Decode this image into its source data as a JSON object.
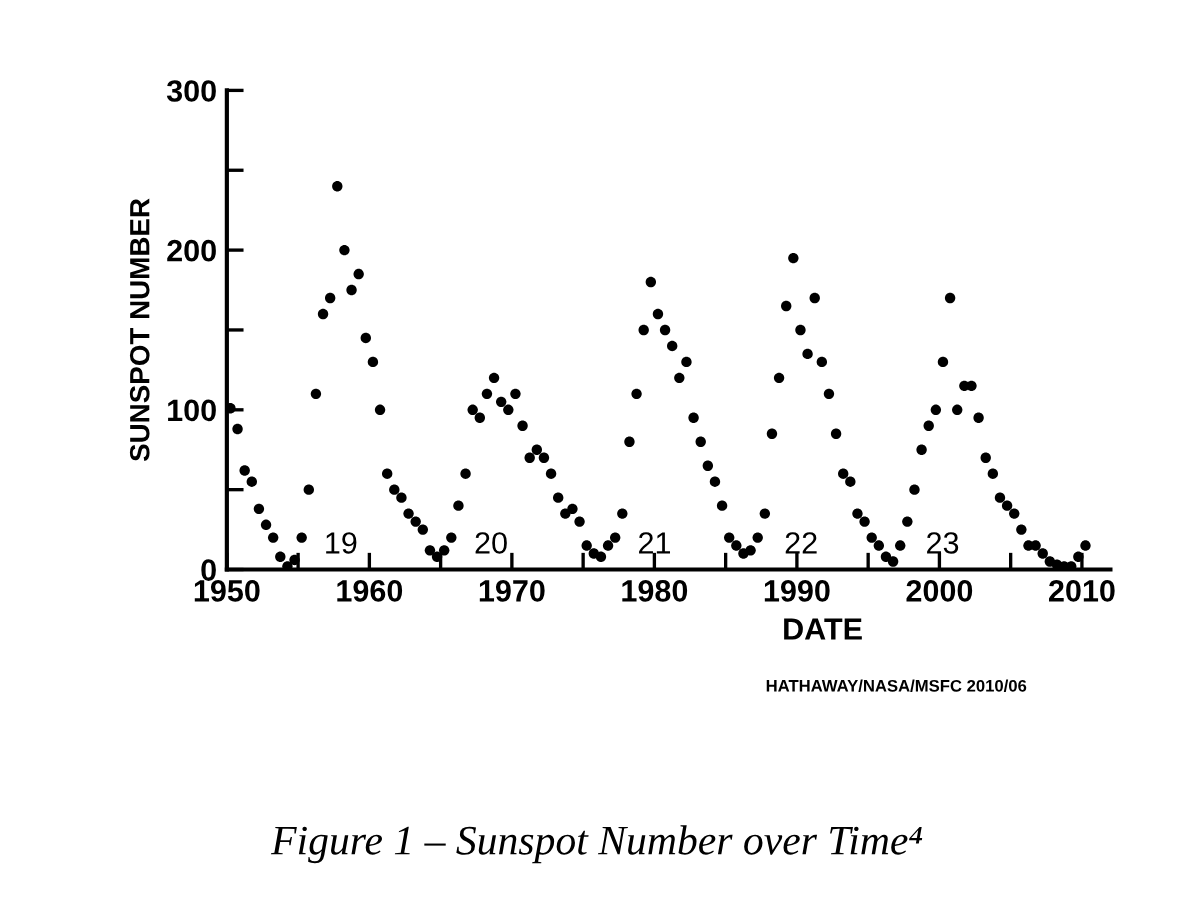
{
  "chart_data": {
    "type": "scatter",
    "title": "Figure 1 – Sunspot Number over Time⁴",
    "xlabel": "DATE",
    "ylabel": "SUNSPOT NUMBER",
    "xlim": [
      1950,
      2012
    ],
    "xticks": [
      1950,
      {
        "value": 1955,
        "label": null
      },
      1960,
      {
        "value": 1965,
        "label": null
      },
      1970,
      {
        "value": 1975,
        "label": null
      },
      1980,
      {
        "value": 1985,
        "label": null
      },
      1990,
      {
        "value": 1995,
        "label": null
      },
      2000,
      {
        "value": 2005,
        "label": null
      },
      2010
    ],
    "ylim": [
      0,
      300
    ],
    "yticks": [
      0,
      {
        "value": 50,
        "label": null
      },
      100,
      {
        "value": 150,
        "label": null
      },
      200,
      {
        "value": 250,
        "label": null
      },
      300
    ],
    "marker": "circle",
    "grid": false,
    "legend": false,
    "series": [
      {
        "color": "#000000",
        "x": [
          1950.25,
          1950.75,
          1951.25,
          1951.75,
          1952.25,
          1952.75,
          1953.25,
          1953.75,
          1954.25,
          1954.75,
          1955.25,
          1955.75,
          1956.25,
          1956.75,
          1957.25,
          1957.75,
          1958.25,
          1958.75,
          1959.25,
          1959.75,
          1960.25,
          1960.75,
          1961.25,
          1961.75,
          1962.25,
          1962.75,
          1963.25,
          1963.75,
          1964.25,
          1964.75,
          1965.25,
          1965.75,
          1966.25,
          1966.75,
          1967.25,
          1967.75,
          1968.25,
          1968.75,
          1969.25,
          1969.75,
          1970.25,
          1970.75,
          1971.25,
          1971.75,
          1972.25,
          1972.75,
          1973.25,
          1973.75,
          1974.25,
          1974.75,
          1975.25,
          1975.75,
          1976.25,
          1976.75,
          1977.25,
          1977.75,
          1978.25,
          1978.75,
          1979.25,
          1979.75,
          1980.25,
          1980.75,
          1981.25,
          1981.75,
          1982.25,
          1982.75,
          1983.25,
          1983.75,
          1984.25,
          1984.75,
          1985.25,
          1985.75,
          1986.25,
          1986.75,
          1987.25,
          1987.75,
          1988.25,
          1988.75,
          1989.25,
          1989.75,
          1990.25,
          1990.75,
          1991.25,
          1991.75,
          1992.25,
          1992.75,
          1993.25,
          1993.75,
          1994.25,
          1994.75,
          1995.25,
          1995.75,
          1996.25,
          1996.75,
          1997.25,
          1997.75,
          1998.25,
          1998.75,
          1999.25,
          1999.75,
          2000.25,
          2000.75,
          2001.25,
          2001.75,
          2002.25,
          2002.75,
          2003.25,
          2003.75,
          2004.25,
          2004.75,
          2005.25,
          2005.75,
          2006.25,
          2006.75,
          2007.25,
          2007.75,
          2008.25,
          2008.75,
          2009.25,
          2009.75,
          2010.25
        ],
        "values": [
          101,
          88,
          62,
          55,
          38,
          28,
          20,
          8,
          2,
          6,
          20,
          50,
          110,
          160,
          170,
          240,
          200,
          175,
          185,
          145,
          130,
          100,
          60,
          50,
          45,
          35,
          30,
          25,
          12,
          8,
          12,
          20,
          40,
          60,
          100,
          95,
          110,
          120,
          105,
          100,
          110,
          90,
          70,
          75,
          70,
          60,
          45,
          35,
          38,
          30,
          15,
          10,
          8,
          15,
          20,
          35,
          80,
          110,
          150,
          180,
          160,
          150,
          140,
          120,
          130,
          95,
          80,
          65,
          55,
          40,
          20,
          15,
          10,
          12,
          20,
          35,
          85,
          120,
          165,
          195,
          150,
          135,
          170,
          130,
          110,
          85,
          60,
          55,
          35,
          30,
          20,
          15,
          8,
          5,
          15,
          30,
          50,
          75,
          90,
          100,
          130,
          170,
          100,
          115,
          115,
          95,
          70,
          60,
          45,
          40,
          35,
          25,
          15,
          15,
          10,
          5,
          3,
          2,
          2,
          8,
          15
        ]
      }
    ],
    "annotations": [
      "19",
      "20",
      "21",
      "22",
      "23",
      "HATHAWAY/NASA/MSFC 2010/06"
    ]
  }
}
